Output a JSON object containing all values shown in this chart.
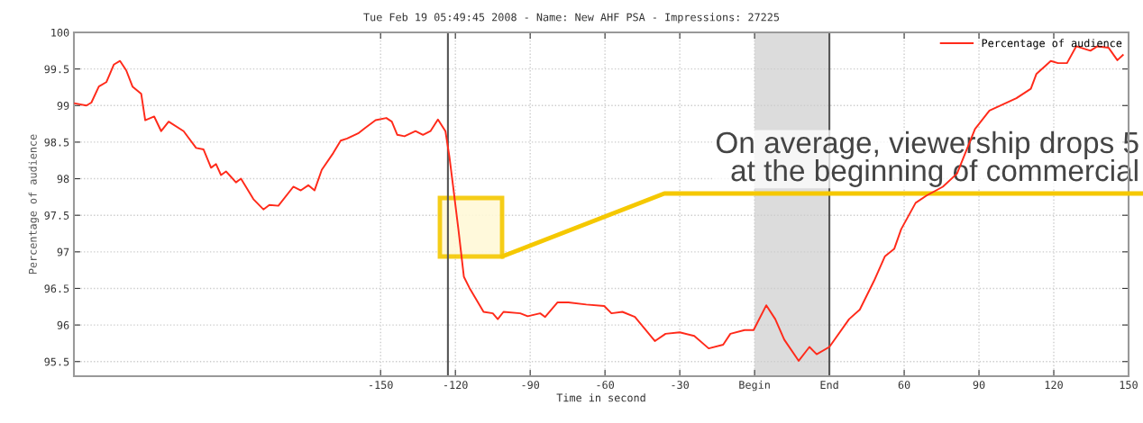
{
  "chart_data": {
    "type": "line",
    "title": "Tue Feb 19 05:49:45 2008 - Name: New AHF PSA - Impressions: 27225",
    "xlabel": "Time in second",
    "ylabel": "Percentage of audience",
    "series": [
      {
        "name": "Percentage of audience",
        "color": "#ff2a1a",
        "x": [
          -272.6,
          -268,
          -266,
          -263,
          -260,
          -257,
          -254.5,
          -252,
          -249.5,
          -246,
          -244.4,
          -240.8,
          -238,
          -235,
          -229,
          -224,
          -221,
          -218,
          -216,
          -214,
          -212,
          -208,
          -206,
          -201,
          -197,
          -194.6,
          -191,
          -185,
          -182,
          -179,
          -176.5,
          -173.6,
          -169,
          -166,
          -163.4,
          -159,
          -156,
          -152,
          -147.7,
          -145.5,
          -143.3,
          -140.4,
          -136,
          -133,
          -130,
          -127,
          -124,
          -122.4,
          -121,
          -118.8,
          -116.6,
          -114.4,
          -108.7,
          -105,
          -103,
          -100.7,
          -94,
          -91,
          -86,
          -84,
          -79,
          -74.7,
          -67.5,
          -60.3,
          -57.4,
          -53,
          -48,
          -40,
          -35.7,
          -30,
          -24.2,
          -18.4,
          -12.6,
          -9.7,
          -4,
          -0.4,
          4.7,
          8.3,
          11.9,
          17.7,
          22,
          24.9,
          30,
          37.9,
          42.2,
          48,
          52.3,
          56,
          58.8,
          64.6,
          69,
          75.5,
          81.2,
          88.4,
          94.2,
          105,
          110.8,
          113,
          118.8,
          121.7,
          125.3,
          129,
          134.7,
          137.5,
          142,
          145.5,
          147.7
        ],
        "values": [
          99.03,
          99.0,
          99.04,
          99.26,
          99.32,
          99.56,
          99.61,
          99.48,
          99.26,
          99.16,
          98.8,
          98.85,
          98.65,
          98.78,
          98.65,
          98.42,
          98.4,
          98.15,
          98.2,
          98.05,
          98.1,
          97.95,
          98.0,
          97.72,
          97.58,
          97.64,
          97.63,
          97.89,
          97.84,
          97.91,
          97.84,
          98.12,
          98.35,
          98.52,
          98.55,
          98.62,
          98.7,
          98.8,
          98.83,
          98.78,
          98.6,
          98.58,
          98.65,
          98.6,
          98.65,
          98.81,
          98.65,
          98.3,
          97.92,
          97.31,
          96.66,
          96.51,
          96.18,
          96.16,
          96.08,
          96.18,
          96.16,
          96.12,
          96.16,
          96.11,
          96.31,
          96.31,
          96.28,
          96.26,
          96.16,
          96.18,
          96.11,
          95.78,
          95.88,
          95.9,
          95.85,
          95.68,
          95.73,
          95.88,
          95.93,
          95.93,
          96.27,
          96.08,
          95.8,
          95.51,
          95.7,
          95.6,
          95.7,
          96.08,
          96.21,
          96.61,
          96.94,
          97.04,
          97.31,
          97.67,
          97.77,
          97.89,
          98.07,
          98.68,
          98.93,
          99.1,
          99.23,
          99.43,
          99.61,
          99.58,
          99.58,
          99.81,
          99.75,
          99.81,
          99.79,
          99.62,
          99.69
        ]
      }
    ],
    "xlim": [
      -273,
      150
    ],
    "ylim": [
      95.3,
      100
    ],
    "xticks": [
      -150,
      -120,
      -90,
      -60,
      -30,
      {
        "value": 0,
        "label": "Begin"
      },
      {
        "value": 30,
        "label": "End"
      },
      60,
      90,
      120,
      150
    ],
    "yticks": [
      95.5,
      96,
      96.5,
      97,
      97.5,
      98,
      98.5,
      99,
      99.5,
      100
    ],
    "ref_lines": [
      {
        "axis": "x",
        "value": -123,
        "color": "#555555"
      },
      {
        "axis": "x",
        "value": 30,
        "color": "#555555"
      }
    ],
    "bands": [
      {
        "axis": "x",
        "from": 0,
        "to": 30,
        "color": "#dcdcdc"
      }
    ],
    "annotations": [
      "On average, viewership drops 5\nat the beginning of commercial"
    ],
    "grid": true,
    "legend": "top right",
    "line_style": "solid",
    "marker": "none"
  }
}
